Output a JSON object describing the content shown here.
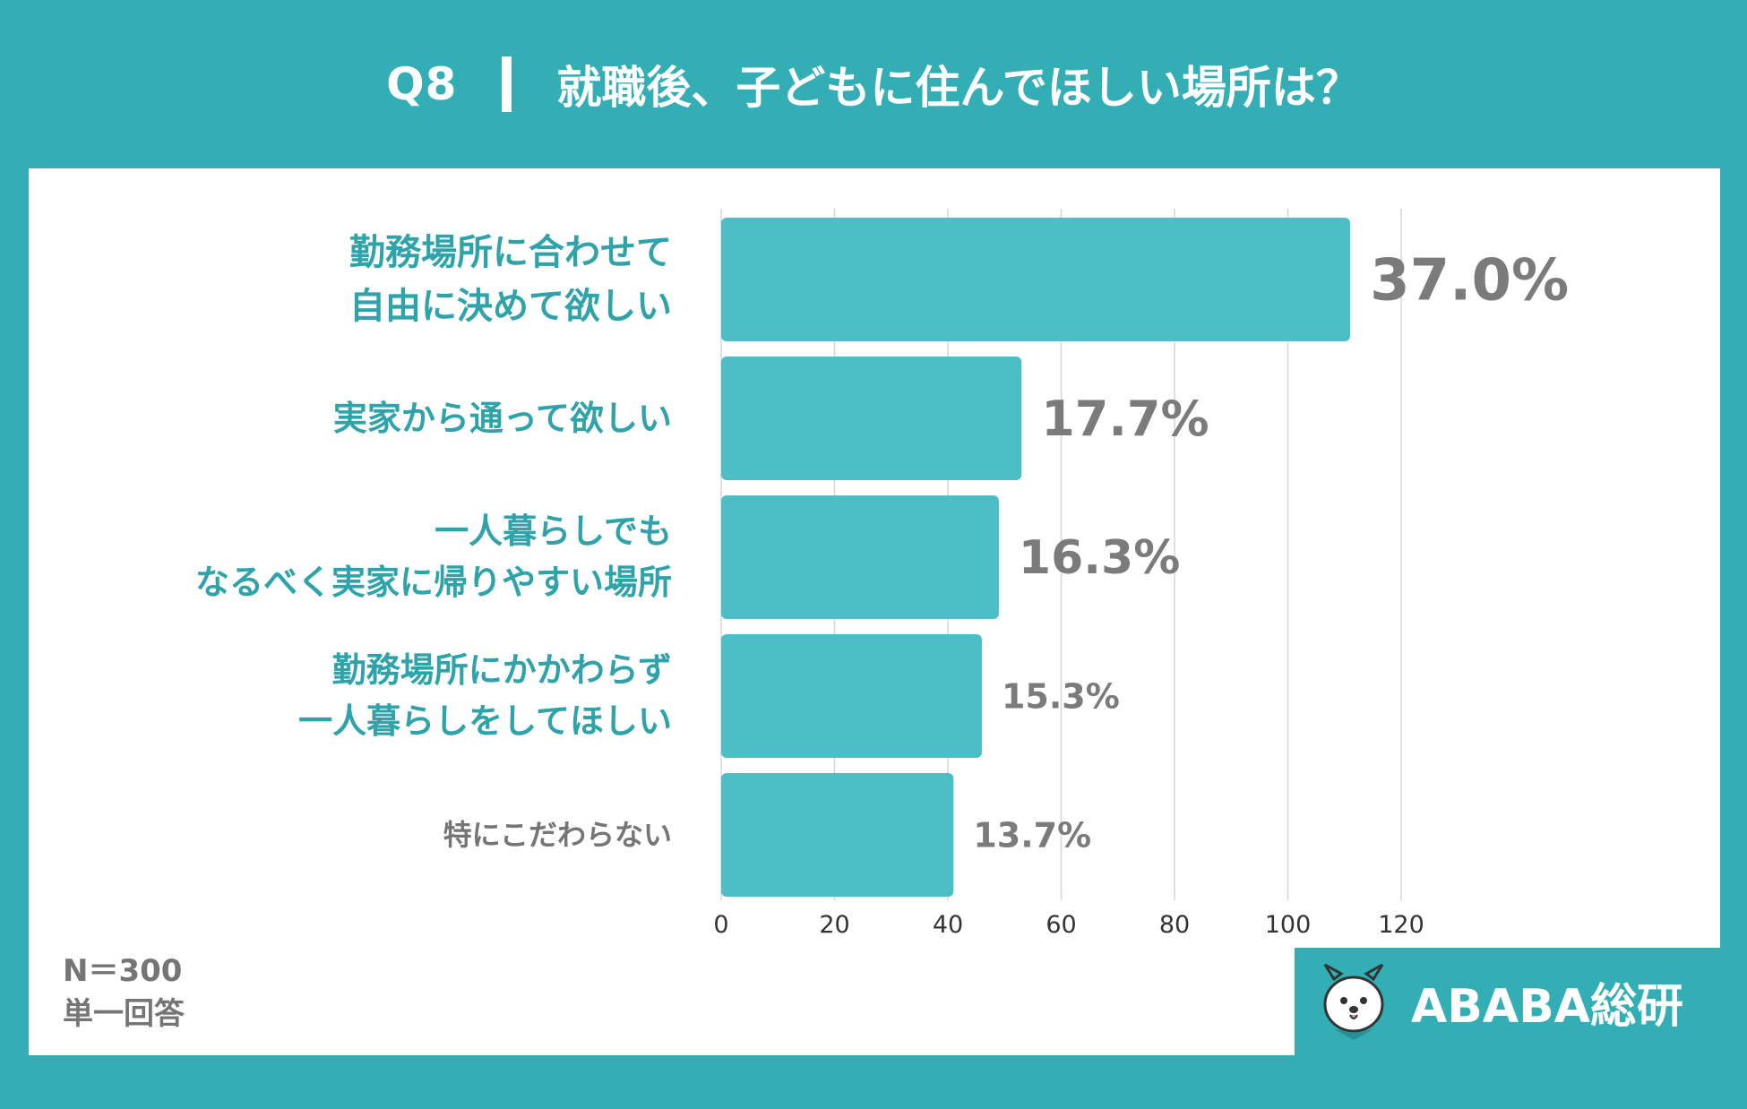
{
  "header": {
    "question_no": "Q8",
    "title": "就職後、子どもに住んでほしい場所は？"
  },
  "chart_data": {
    "type": "bar",
    "orientation": "horizontal",
    "categories": [
      "勤務場所に合わせて\n自由に決めて欲しい",
      "実家から通って欲しい",
      "一人暮らしでも\nなるべく実家に帰りやすい場所",
      "勤務場所にかかわらず\n一人暮らしをしてほしい",
      "特にこだわらない"
    ],
    "values": [
      111,
      53,
      49,
      46,
      41
    ],
    "value_labels": [
      "37.0%",
      "17.7%",
      "16.3%",
      "15.3%",
      "13.7%"
    ],
    "xlim": [
      0,
      120
    ],
    "x_ticks": [
      "0",
      "20",
      "40",
      "60",
      "80",
      "100",
      "120"
    ],
    "grid": true,
    "bar_color": "#4dbdc6",
    "highlight_label_color": "#2fa3aa",
    "muted_label_color": "#757575",
    "value_label_color": "#7b7b7b"
  },
  "footnote": {
    "n": "N＝300",
    "type": "単一回答"
  },
  "brand": {
    "name": "ABABA総研",
    "logo_icon": "dog-mascot-icon"
  }
}
